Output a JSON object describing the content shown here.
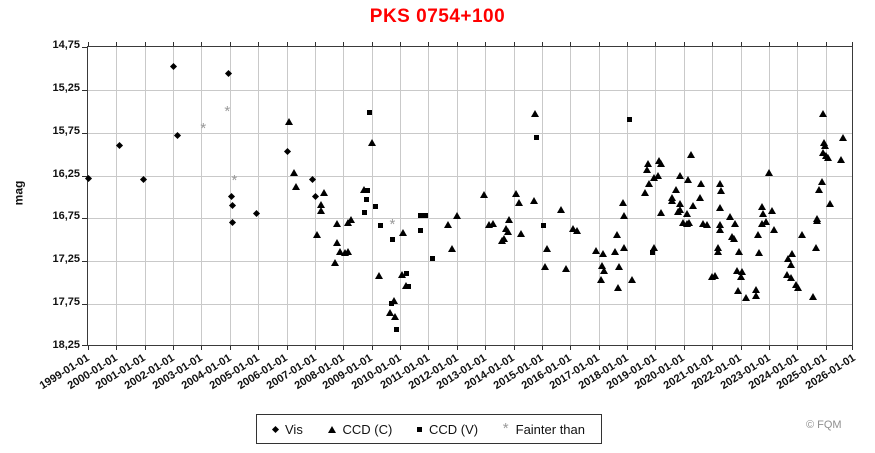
{
  "title": "PKS 0754+100",
  "footer": "© FQM",
  "y_axis": {
    "label": "mag",
    "ticks": [
      "14,75",
      "15,25",
      "15,75",
      "16,25",
      "16,75",
      "17,25",
      "17,75",
      "18,25"
    ]
  },
  "x_axis": {
    "ticks": [
      "1999-01-01",
      "2000-01-01",
      "2001-01-01",
      "2002-01-01",
      "2003-01-01",
      "2004-01-01",
      "2005-01-01",
      "2006-01-01",
      "2007-01-01",
      "2008-01-01",
      "2009-01-01",
      "2010-01-01",
      "2011-01-01",
      "2012-01-01",
      "2013-01-01",
      "2014-01-01",
      "2015-01-01",
      "2016-01-01",
      "2017-01-01",
      "2018-01-01",
      "2019-01-01",
      "2020-01-01",
      "2021-01-01",
      "2022-01-01",
      "2023-01-01",
      "2024-01-01",
      "2025-01-01",
      "2026-01-01"
    ]
  },
  "legend": [
    {
      "label": "Vis",
      "marker": "diamond"
    },
    {
      "label": "CCD (C)",
      "marker": "triangle"
    },
    {
      "label": "CCD (V)",
      "marker": "square"
    },
    {
      "label": "Fainter than",
      "marker": "asterisk",
      "glyph": "*"
    }
  ],
  "colors": {
    "title": "#ff0000",
    "marker": "#000000",
    "fainter_than": "#9a9a9a",
    "grid": "#c9c9c9",
    "footer": "#8f8f8f"
  },
  "chart_data": {
    "type": "scatter",
    "title": "PKS 0754+100",
    "xlabel": "",
    "ylabel": "mag",
    "x_range": [
      1999.0,
      2026.0
    ],
    "y_range_mag": [
      14.75,
      18.25
    ],
    "y_axis_inverted_brightness": true,
    "grid": true,
    "legend_position": "bottom-center",
    "series": [
      {
        "name": "Vis",
        "marker": "diamond",
        "color": "#000000",
        "points": [
          [
            1999.03,
            16.29
          ],
          [
            2000.13,
            15.9
          ],
          [
            2000.99,
            16.3
          ],
          [
            2002.02,
            14.98
          ],
          [
            2002.18,
            15.79
          ],
          [
            2003.97,
            15.07
          ],
          [
            2004.06,
            16.5
          ],
          [
            2004.12,
            16.6
          ],
          [
            2004.12,
            16.8
          ],
          [
            2004.94,
            16.7
          ],
          [
            2006.06,
            15.98
          ],
          [
            2006.93,
            16.3
          ],
          [
            2007.03,
            16.5
          ]
        ]
      },
      {
        "name": "CCD (C)",
        "marker": "triangle",
        "color": "#000000",
        "points": [
          [
            2006.1,
            15.62
          ],
          [
            2006.25,
            16.22
          ],
          [
            2006.34,
            16.38
          ],
          [
            2007.33,
            16.45
          ],
          [
            2007.22,
            16.59
          ],
          [
            2007.23,
            16.66
          ],
          [
            2007.76,
            16.81
          ],
          [
            2007.08,
            16.94
          ],
          [
            2007.77,
            17.04
          ],
          [
            2007.9,
            17.14
          ],
          [
            2007.7,
            17.27
          ],
          [
            2008.07,
            17.15
          ],
          [
            2008.16,
            17.14
          ],
          [
            2008.28,
            16.77
          ],
          [
            2008.16,
            16.8
          ],
          [
            2008.74,
            16.42
          ],
          [
            2009.0,
            15.87
          ],
          [
            2010.12,
            16.92
          ],
          [
            2009.24,
            17.42
          ],
          [
            2010.08,
            17.41
          ],
          [
            2010.21,
            17.54
          ],
          [
            2009.77,
            17.71
          ],
          [
            2009.64,
            17.85
          ],
          [
            2009.81,
            17.9
          ],
          [
            2011.68,
            16.83
          ],
          [
            2012.02,
            16.72
          ],
          [
            2011.82,
            17.11
          ],
          [
            2012.97,
            16.48
          ],
          [
            2013.12,
            16.83
          ],
          [
            2013.26,
            16.81
          ],
          [
            2013.61,
            17.01
          ],
          [
            2013.67,
            16.99
          ],
          [
            2013.75,
            16.87
          ],
          [
            2013.81,
            16.91
          ],
          [
            2013.84,
            16.77
          ],
          [
            2014.08,
            16.46
          ],
          [
            2014.18,
            16.57
          ],
          [
            2014.26,
            16.93
          ],
          [
            2014.73,
            16.55
          ],
          [
            2014.76,
            15.53
          ],
          [
            2015.19,
            17.11
          ],
          [
            2015.12,
            17.32
          ],
          [
            2015.67,
            16.65
          ],
          [
            2015.85,
            17.34
          ],
          [
            2016.1,
            16.87
          ],
          [
            2016.24,
            16.9
          ],
          [
            2016.91,
            17.13
          ],
          [
            2017.16,
            17.17
          ],
          [
            2017.1,
            17.31
          ],
          [
            2017.18,
            17.36
          ],
          [
            2017.07,
            17.47
          ],
          [
            2017.58,
            17.14
          ],
          [
            2017.64,
            16.94
          ],
          [
            2017.71,
            17.32
          ],
          [
            2017.69,
            17.56
          ],
          [
            2017.85,
            16.57
          ],
          [
            2017.9,
            16.72
          ],
          [
            2017.9,
            17.09
          ],
          [
            2018.18,
            17.47
          ],
          [
            2018.64,
            16.45
          ],
          [
            2018.7,
            16.18
          ],
          [
            2018.73,
            16.12
          ],
          [
            2018.77,
            16.35
          ],
          [
            2018.96,
            16.28
          ],
          [
            2019.1,
            16.26
          ],
          [
            2019.14,
            16.08
          ],
          [
            2019.2,
            16.12
          ],
          [
            2019.21,
            16.69
          ],
          [
            2018.94,
            17.1
          ],
          [
            2019.58,
            16.51
          ],
          [
            2019.6,
            16.55
          ],
          [
            2019.72,
            16.42
          ],
          [
            2019.86,
            16.26
          ],
          [
            2019.88,
            16.58
          ],
          [
            2019.86,
            16.65
          ],
          [
            2019.81,
            16.67
          ],
          [
            2019.99,
            16.8
          ],
          [
            2020.12,
            16.81
          ],
          [
            2020.19,
            16.8
          ],
          [
            2020.13,
            16.7
          ],
          [
            2020.16,
            16.3
          ],
          [
            2020.25,
            16.01
          ],
          [
            2020.33,
            16.6
          ],
          [
            2020.57,
            16.51
          ],
          [
            2020.62,
            16.35
          ],
          [
            2020.67,
            16.81
          ],
          [
            2020.82,
            16.83
          ],
          [
            2021.0,
            17.43
          ],
          [
            2021.11,
            17.42
          ],
          [
            2021.2,
            17.09
          ],
          [
            2021.22,
            17.14
          ],
          [
            2021.26,
            16.63
          ],
          [
            2021.29,
            16.35
          ],
          [
            2021.31,
            16.43
          ],
          [
            2021.28,
            16.83
          ],
          [
            2021.26,
            16.89
          ],
          [
            2021.63,
            16.73
          ],
          [
            2021.7,
            16.97
          ],
          [
            2021.77,
            16.99
          ],
          [
            2021.82,
            16.81
          ],
          [
            2021.88,
            17.36
          ],
          [
            2022.06,
            17.37
          ],
          [
            2022.0,
            17.43
          ],
          [
            2021.93,
            17.14
          ],
          [
            2021.91,
            17.6
          ],
          [
            2022.18,
            17.68
          ],
          [
            2022.56,
            17.59
          ],
          [
            2022.56,
            17.65
          ],
          [
            2022.62,
            16.94
          ],
          [
            2022.64,
            17.15
          ],
          [
            2022.76,
            16.62
          ],
          [
            2022.8,
            16.7
          ],
          [
            2022.89,
            16.79
          ],
          [
            2022.75,
            16.82
          ],
          [
            2023.01,
            16.22
          ],
          [
            2023.1,
            16.66
          ],
          [
            2023.18,
            16.89
          ],
          [
            2023.67,
            17.22
          ],
          [
            2023.82,
            17.16
          ],
          [
            2023.79,
            17.29
          ],
          [
            2023.64,
            17.41
          ],
          [
            2023.78,
            17.45
          ],
          [
            2023.94,
            17.53
          ],
          [
            2024.03,
            17.56
          ],
          [
            2024.17,
            16.94
          ],
          [
            2024.57,
            17.67
          ],
          [
            2024.67,
            17.1
          ],
          [
            2024.71,
            16.76
          ],
          [
            2024.68,
            16.78
          ],
          [
            2024.77,
            16.42
          ],
          [
            2024.87,
            16.33
          ],
          [
            2024.91,
            15.53
          ],
          [
            2024.93,
            15.87
          ],
          [
            2024.97,
            15.91
          ],
          [
            2024.89,
            15.99
          ],
          [
            2025.02,
            16.02
          ],
          [
            2025.1,
            16.05
          ],
          [
            2025.17,
            16.58
          ],
          [
            2025.53,
            16.07
          ],
          [
            2025.6,
            15.81
          ]
        ]
      },
      {
        "name": "CCD (V)",
        "marker": "square",
        "color": "#000000",
        "points": [
          [
            2008.93,
            15.51
          ],
          [
            2008.84,
            16.42
          ],
          [
            2008.82,
            16.53
          ],
          [
            2008.76,
            16.68
          ],
          [
            2009.15,
            16.61
          ],
          [
            2009.3,
            16.83
          ],
          [
            2009.73,
            16.99
          ],
          [
            2009.71,
            17.74
          ],
          [
            2009.88,
            18.05
          ],
          [
            2010.22,
            17.39
          ],
          [
            2010.3,
            17.54
          ],
          [
            2010.71,
            16.72
          ],
          [
            2010.88,
            16.72
          ],
          [
            2010.73,
            16.89
          ],
          [
            2011.15,
            17.22
          ],
          [
            2014.82,
            15.8
          ],
          [
            2015.04,
            16.83
          ],
          [
            2018.1,
            15.59
          ],
          [
            2018.91,
            17.15
          ]
        ]
      },
      {
        "name": "Fainter than",
        "marker": "asterisk",
        "color": "#9a9a9a",
        "points": [
          [
            2003.1,
            15.7
          ],
          [
            2003.95,
            15.5
          ],
          [
            2004.2,
            16.3
          ],
          [
            2009.77,
            16.81
          ]
        ]
      }
    ]
  }
}
